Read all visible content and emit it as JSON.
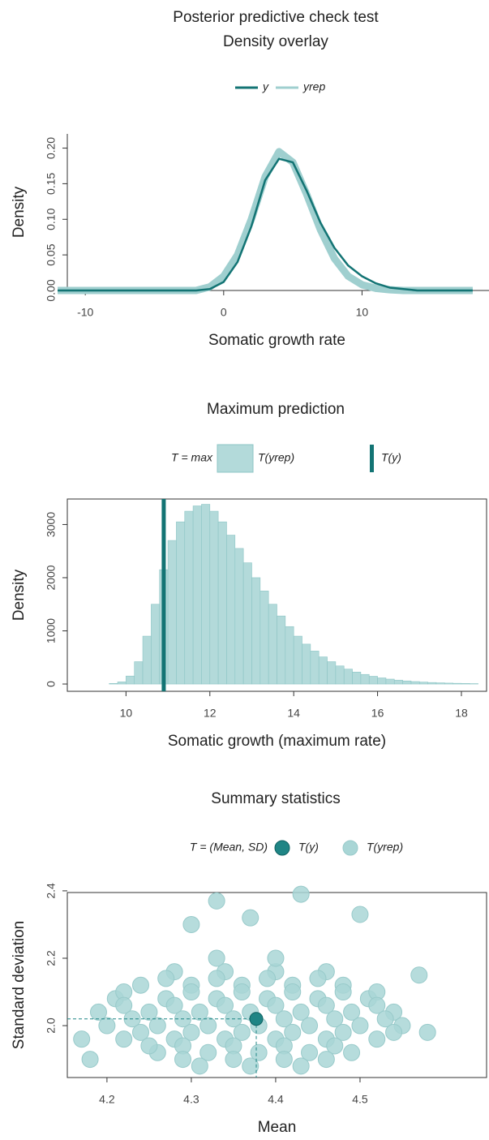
{
  "chart_data": [
    {
      "type": "line",
      "title": "Posterior predictive check test",
      "subtitle": "Density overlay",
      "xlabel": "Somatic growth rate",
      "ylabel": "Density",
      "x": [
        -12,
        -11,
        -10,
        -9,
        -8,
        -7,
        -6,
        -5,
        -4,
        -3,
        -2,
        -1,
        0,
        1,
        2,
        3,
        4,
        5,
        6,
        7,
        8,
        9,
        10,
        11,
        12,
        13,
        14,
        15,
        16,
        17,
        18
      ],
      "series": [
        {
          "name": "yrep",
          "color": "#9fcfcf",
          "values": [
            0,
            0,
            0,
            0,
            0,
            0,
            0,
            0,
            0,
            0,
            0,
            0.005,
            0.02,
            0.05,
            0.1,
            0.16,
            0.195,
            0.18,
            0.135,
            0.085,
            0.045,
            0.02,
            0.008,
            0.003,
            0.001,
            0,
            0,
            0,
            0,
            0,
            0
          ]
        },
        {
          "name": "y",
          "color": "#137474",
          "values": [
            0,
            0,
            0,
            0,
            0,
            0,
            0,
            0,
            0,
            0,
            0,
            0.002,
            0.012,
            0.04,
            0.09,
            0.155,
            0.185,
            0.18,
            0.14,
            0.095,
            0.06,
            0.035,
            0.02,
            0.01,
            0.004,
            0.002,
            0,
            0,
            0,
            0,
            0
          ]
        }
      ],
      "xlim": [
        -11.3,
        19
      ],
      "xticks": [
        -10,
        0,
        10
      ],
      "ylim": [
        0,
        0.22
      ],
      "yticks": [
        {
          "value": 0,
          "label": "0.00"
        },
        {
          "value": 0.05,
          "label": "0.05"
        },
        {
          "value": 0.1,
          "label": "0.10"
        },
        {
          "value": 0.15,
          "label": "0.15"
        },
        {
          "value": 0.2,
          "label": "0.20"
        }
      ]
    },
    {
      "type": "histogram",
      "title": "Maximum prediction",
      "legend_title": "T = max",
      "bar_name": "T(yrep)",
      "xlabel": "Somatic growth (maximum rate)",
      "ylabel": "Density",
      "color": "#b3dada",
      "bins": [
        9.6,
        9.8,
        10,
        10.2,
        10.4,
        10.6,
        10.8,
        11,
        11.2,
        11.4,
        11.6,
        11.8,
        12,
        12.2,
        12.4,
        12.6,
        12.8,
        13,
        13.2,
        13.4,
        13.6,
        13.8,
        14,
        14.2,
        14.4,
        14.6,
        14.8,
        15,
        15.2,
        15.4,
        15.6,
        15.8,
        16,
        16.2,
        16.4,
        16.6,
        16.8,
        17,
        17.2,
        17.4,
        17.6,
        17.8,
        18,
        18.2,
        18.4
      ],
      "values": [
        10,
        40,
        150,
        420,
        900,
        1500,
        2150,
        2700,
        3050,
        3250,
        3350,
        3380,
        3250,
        3050,
        2800,
        2550,
        2280,
        2000,
        1750,
        1500,
        1280,
        1080,
        900,
        750,
        620,
        510,
        420,
        340,
        280,
        225,
        180,
        145,
        115,
        92,
        73,
        58,
        46,
        36,
        28,
        22,
        17,
        13,
        10,
        7
      ],
      "observed": {
        "name": "T(y)",
        "value": 10.9,
        "color": "#137474"
      },
      "xlim": [
        8.6,
        18.6
      ],
      "xticks": [
        10,
        12,
        14,
        16,
        18
      ],
      "ylim": [
        -137,
        3480
      ],
      "yticks": [
        0,
        1000,
        2000,
        3000
      ]
    },
    {
      "type": "scatter",
      "title": "Summary statistics",
      "legend_title": "T = (Mean, SD)",
      "xlabel": "Mean",
      "ylabel": "Standard deviation",
      "series": [
        {
          "name": "T(yrep)",
          "color": "#a9d6d6",
          "x": [
            4.28,
            4.34,
            4.4,
            4.46,
            4.24,
            4.3,
            4.36,
            4.42,
            4.48,
            4.21,
            4.27,
            4.33,
            4.39,
            4.45,
            4.51,
            4.19,
            4.25,
            4.31,
            4.37,
            4.43,
            4.49,
            4.54,
            4.2,
            4.26,
            4.32,
            4.38,
            4.44,
            4.5,
            4.55,
            4.22,
            4.28,
            4.34,
            4.4,
            4.46,
            4.52,
            4.26,
            4.32,
            4.38,
            4.44,
            4.49,
            4.31,
            4.37,
            4.43,
            4.33,
            4.4,
            4.27,
            4.33,
            4.39,
            4.45,
            4.22,
            4.3,
            4.36,
            4.42,
            4.48,
            4.52,
            4.22,
            4.28,
            4.34,
            4.4,
            4.46,
            4.52,
            4.23,
            4.29,
            4.35,
            4.41,
            4.47,
            4.53,
            4.24,
            4.3,
            4.36,
            4.42,
            4.48,
            4.54,
            4.25,
            4.29,
            4.35,
            4.41,
            4.47,
            4.29,
            4.35,
            4.41,
            4.46,
            4.33,
            4.43,
            4.5,
            4.17,
            4.58,
            4.57,
            4.18,
            4.3,
            4.37
          ],
          "values": [
            2.16,
            2.16,
            2.16,
            2.16,
            2.12,
            2.12,
            2.12,
            2.12,
            2.12,
            2.08,
            2.08,
            2.08,
            2.08,
            2.08,
            2.08,
            2.04,
            2.04,
            2.04,
            2.04,
            2.04,
            2.04,
            2.04,
            2.0,
            2.0,
            2.0,
            2.0,
            2.0,
            2.0,
            2.0,
            1.96,
            1.96,
            1.96,
            1.96,
            1.96,
            1.96,
            1.92,
            1.92,
            1.92,
            1.92,
            1.92,
            1.88,
            1.88,
            1.88,
            2.2,
            2.2,
            2.14,
            2.14,
            2.14,
            2.14,
            2.1,
            2.1,
            2.1,
            2.1,
            2.1,
            2.1,
            2.06,
            2.06,
            2.06,
            2.06,
            2.06,
            2.06,
            2.02,
            2.02,
            2.02,
            2.02,
            2.02,
            2.02,
            1.98,
            1.98,
            1.98,
            1.98,
            1.98,
            1.98,
            1.94,
            1.94,
            1.94,
            1.94,
            1.94,
            1.9,
            1.9,
            1.9,
            1.9,
            2.37,
            2.39,
            2.33,
            1.96,
            1.98,
            2.15,
            1.9,
            2.3,
            2.32
          ]
        },
        {
          "name": "T(y)",
          "color": "#1f8585",
          "x": [
            4.377
          ],
          "values": [
            2.02
          ]
        }
      ],
      "xlim": [
        4.153,
        4.65
      ],
      "xticks": [
        4.2,
        4.3,
        4.4,
        4.5
      ],
      "ylim": [
        1.846,
        2.395
      ],
      "yticks": [
        {
          "value": 2,
          "label": "2.0"
        },
        {
          "value": 2.2,
          "label": "2.2"
        },
        {
          "value": 2.4,
          "label": "2.4"
        }
      ]
    }
  ]
}
